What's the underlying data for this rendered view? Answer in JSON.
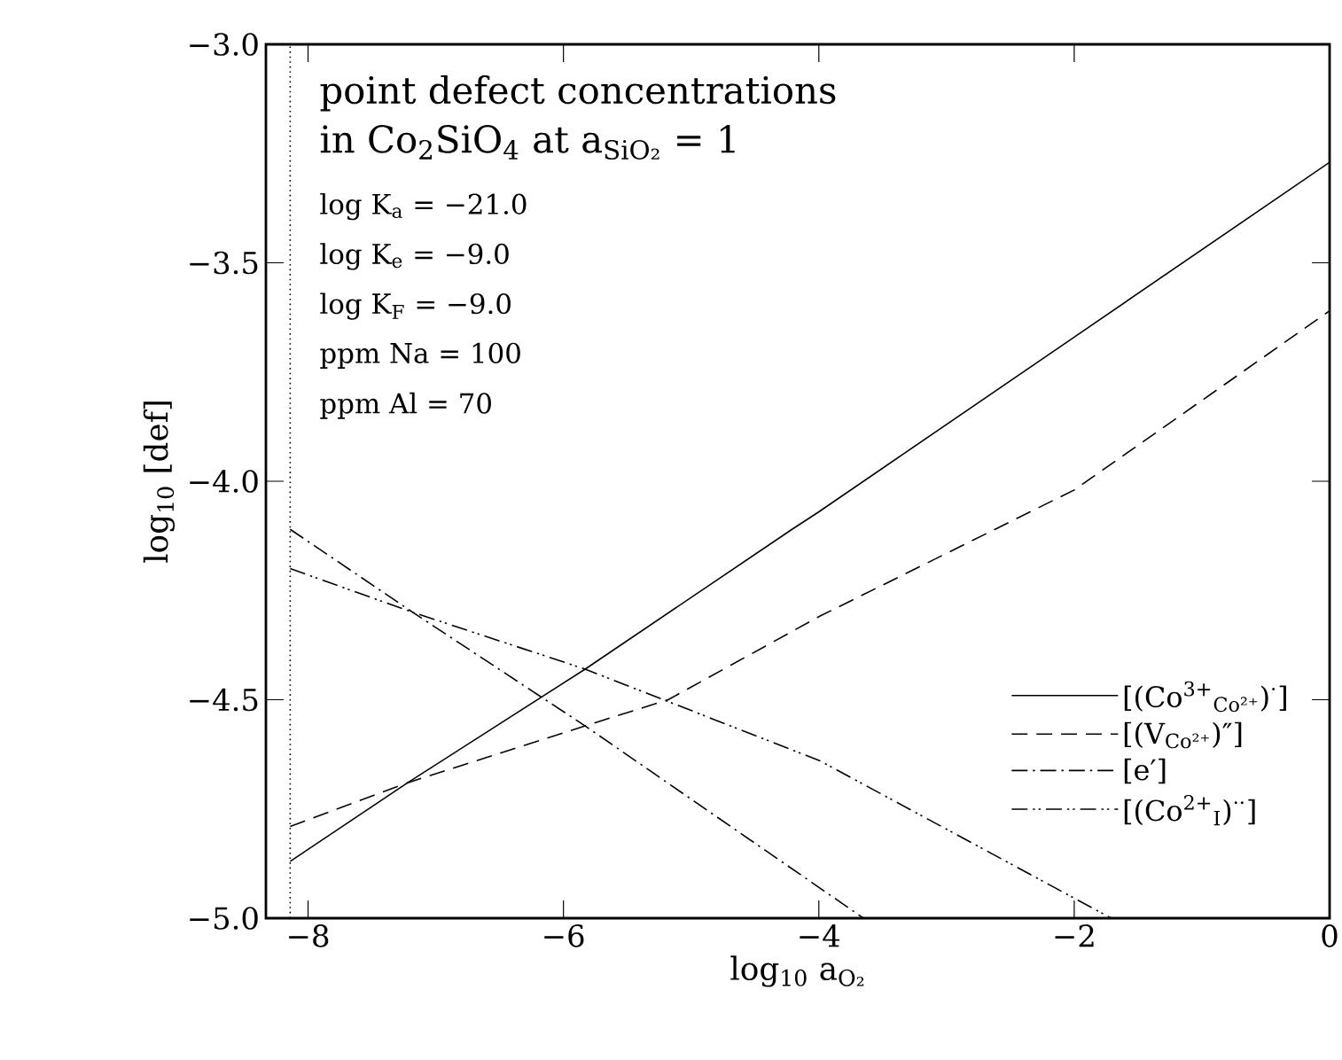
{
  "chart_data": {
    "type": "line",
    "xlabel": "log$_{10}$ a$_{O₂}$",
    "ylabel": "log$_{10}$ [def]",
    "annotations": [
      "point defect concentrations",
      "in Co$_{2}$SiO$_{4}$ at a$_{SiO₂}$ = 1",
      "log K$_{a}$ = −21.0",
      "log K$_{e}$ = −9.0",
      "log K$_{F}$ = −9.0",
      "ppm Na = 100",
      "ppm Al = 70"
    ],
    "xlim": [
      -8.33,
      0
    ],
    "ylim": [
      -5,
      -3
    ],
    "xticks": [
      {
        "value": -8,
        "label": "−8"
      },
      {
        "value": -6,
        "label": "−6"
      },
      {
        "value": -4,
        "label": "−4"
      },
      {
        "value": -2,
        "label": "−2"
      },
      0
    ],
    "yticks": [
      {
        "value": -5,
        "label": "−5.0"
      },
      {
        "value": -4.5,
        "label": "−4.5"
      },
      {
        "value": -4,
        "label": "−4.0"
      },
      {
        "value": -3.5,
        "label": "−3.5"
      },
      {
        "value": -3,
        "label": "−3.0"
      }
    ],
    "ref_lines": [
      {
        "axis": "x",
        "value": -8.14,
        "line_style": "dotted",
        "color": "#000000"
      }
    ],
    "legend": "bottom right",
    "grid": false,
    "series": [
      {
        "name": "[(Co$^{3+}$$_{Co²⁺}$)$^{·}$]",
        "color": "#000000",
        "line_style": "solid",
        "x": [
          -8.14,
          -7.22,
          -5.83,
          -4.21,
          -4,
          -2,
          0
        ],
        "values": [
          -4.87,
          -4.69,
          -4.43,
          -4.11,
          -4.07,
          -3.67,
          -3.27
        ]
      },
      {
        "name": "[(V$_{Co²⁺}$)″]",
        "color": "#000000",
        "line_style": "dashed",
        "x": [
          -8.14,
          -7.22,
          -5.83,
          -5.18,
          -4,
          -2,
          0
        ],
        "values": [
          -4.79,
          -4.69,
          -4.56,
          -4.5,
          -4.31,
          -4.02,
          -3.61
        ]
      },
      {
        "name": "[e′]",
        "color": "#000000",
        "line_style": "dashdot",
        "x": [
          -8.14,
          -7.18,
          -5.83,
          -3.65
        ],
        "values": [
          -4.11,
          -4.3,
          -4.56,
          -5.0
        ]
      },
      {
        "name": "[(Co$^{2+}$$_{I}$)$^{··}$]",
        "color": "#000000",
        "line_style": "dashdotdot",
        "x": [
          -8.14,
          -7.18,
          -5.83,
          -3.99,
          -1.71
        ],
        "values": [
          -4.2,
          -4.3,
          -4.43,
          -4.64,
          -5.0
        ]
      }
    ]
  }
}
